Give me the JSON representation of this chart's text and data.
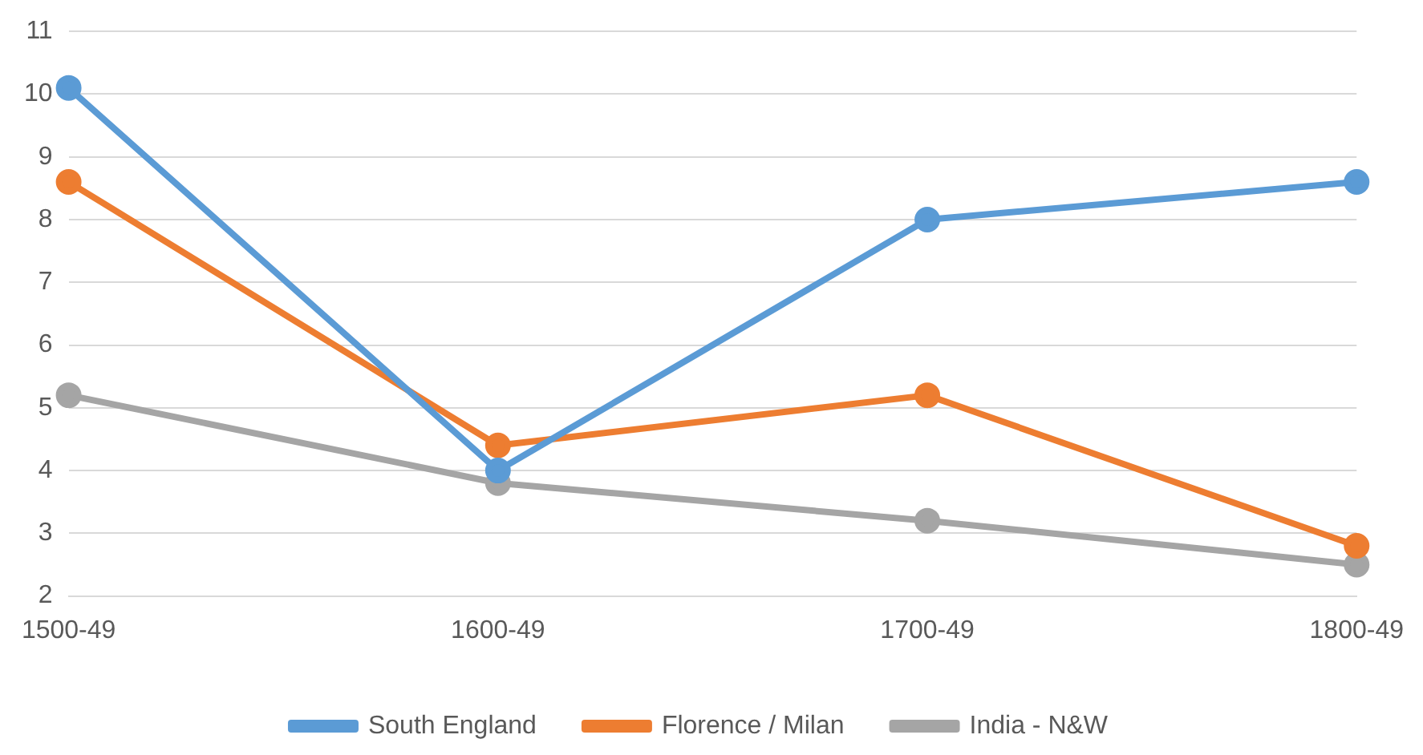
{
  "chart_data": {
    "type": "line",
    "categories": [
      "1500-49",
      "1600-49",
      "1700-49",
      "1800-49"
    ],
    "series": [
      {
        "name": "South England",
        "color": "#5b9bd5",
        "values": [
          10.1,
          4.0,
          8.0,
          8.6
        ]
      },
      {
        "name": "Florence / Milan",
        "color": "#ed7d31",
        "values": [
          8.6,
          4.4,
          5.2,
          2.8
        ]
      },
      {
        "name": "India - N&W",
        "color": "#a5a5a5",
        "values": [
          5.2,
          3.8,
          3.2,
          2.5
        ]
      }
    ],
    "ylim": [
      2,
      11
    ],
    "yticks": [
      2,
      3,
      4,
      5,
      6,
      7,
      8,
      9,
      10,
      11
    ],
    "grid": "y",
    "legend": "bottom",
    "marker": "circle"
  }
}
